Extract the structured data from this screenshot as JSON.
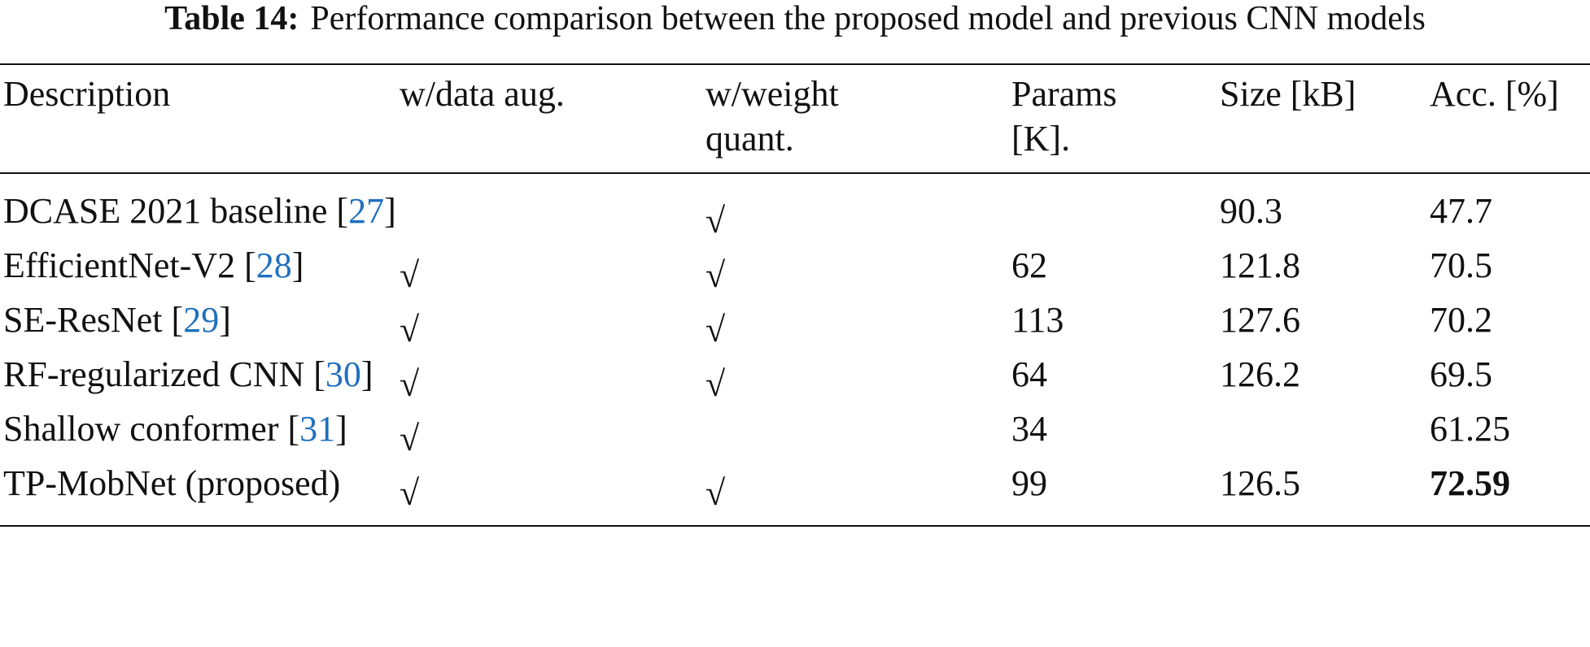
{
  "header": {
    "label": "Table 14:",
    "text": "Performance comparison between the proposed model and previous CNN models"
  },
  "table": {
    "columns": [
      [
        "Description"
      ],
      [
        "w/data aug."
      ],
      [
        "w/weight",
        "quant."
      ],
      [
        "Params",
        "[K]."
      ],
      [
        "Size [kB]"
      ],
      [
        "Acc. [%]"
      ]
    ],
    "rows": [
      {
        "description": "DCASE 2021 baseline",
        "ref": [
          "[",
          "27",
          "]"
        ],
        "data_aug": null,
        "weight_quant": "√",
        "params": null,
        "size": 90.3,
        "acc": 47.7
      },
      {
        "description": "EfficientNet-V2",
        "ref": [
          "[",
          "28",
          "]"
        ],
        "data_aug": "√",
        "weight_quant": "√",
        "params": 62,
        "size": 121.8,
        "acc": 70.5
      },
      {
        "description": "SE-ResNet",
        "ref": [
          "[",
          "29",
          "]"
        ],
        "data_aug": "√",
        "weight_quant": "√",
        "params": 113,
        "size": 127.6,
        "acc": 70.2
      },
      {
        "description": "RF-regularized CNN",
        "ref": [
          "[",
          "30",
          "]"
        ],
        "data_aug": "√",
        "weight_quant": "√",
        "params": 64,
        "size": 126.2,
        "acc": 69.5
      },
      {
        "description": "Shallow conformer",
        "ref": [
          "[",
          "31",
          "]"
        ],
        "data_aug": "√",
        "weight_quant": null,
        "params": 34,
        "size": null,
        "acc": 61.25
      },
      {
        "description": "TP-MobNet (proposed)",
        "ref": null,
        "data_aug": "√",
        "weight_quant": "√",
        "params": 99,
        "size": 126.5,
        "acc": 72.59
      }
    ]
  }
}
